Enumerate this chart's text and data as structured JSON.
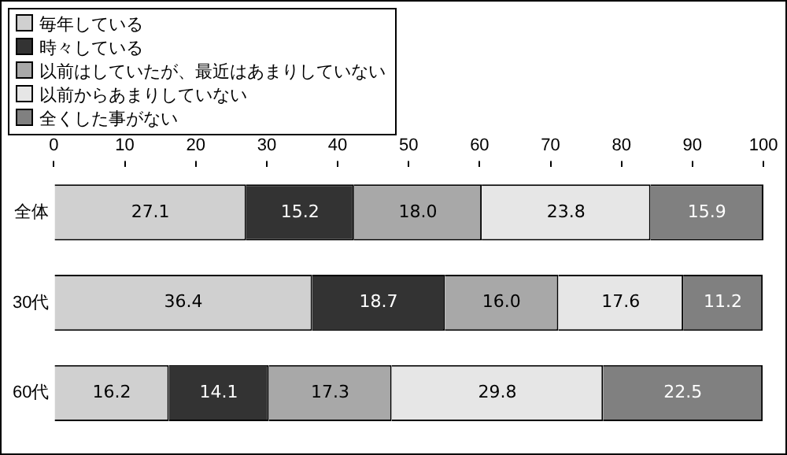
{
  "chart_data": {
    "type": "bar",
    "orientation": "horizontal",
    "stacked": true,
    "categories": [
      "全体",
      "30代",
      "60代"
    ],
    "series": [
      {
        "name": "毎年している",
        "color": "#d0d0d0",
        "values": [
          27.1,
          36.4,
          16.2
        ],
        "value_labels": [
          "27.1",
          "36.4",
          "16.2"
        ]
      },
      {
        "name": "時々している",
        "color": "#333333",
        "values": [
          15.2,
          18.7,
          14.1
        ],
        "value_labels": [
          "15.2",
          "18.7",
          "14.1"
        ]
      },
      {
        "name": "以前はしていたが、最近はあまりしていない",
        "color": "#a8a8a8",
        "values": [
          18.0,
          16.0,
          17.3
        ],
        "value_labels": [
          "18.0",
          "16.0",
          "17.3"
        ]
      },
      {
        "name": "以前からあまりしていない",
        "color": "#e6e6e6",
        "values": [
          23.8,
          17.6,
          29.8
        ],
        "value_labels": [
          "23.8",
          "17.6",
          "29.8"
        ]
      },
      {
        "name": "全くした事がない",
        "color": "#808080",
        "values": [
          15.9,
          11.2,
          22.5
        ],
        "value_labels": [
          "15.9",
          "11.2",
          "22.5"
        ]
      }
    ],
    "xlim": [
      0,
      100
    ],
    "xticks": [
      0,
      10,
      20,
      30,
      40,
      50,
      60,
      70,
      80,
      90,
      100
    ],
    "legend": "top left",
    "grid": false
  }
}
